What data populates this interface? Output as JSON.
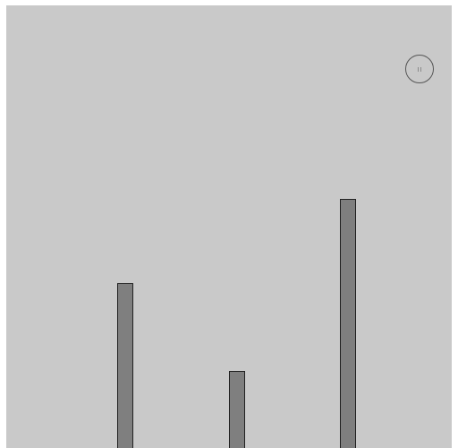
{
  "colors": {
    "background": "#c9c9c9",
    "pillar_fill": "#7f7f7f",
    "pillar_outline": "#202020",
    "button_outline": "#555555"
  },
  "icons": {
    "pause": "pause-icon"
  }
}
